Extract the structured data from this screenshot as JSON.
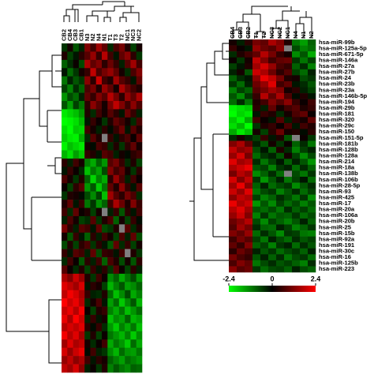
{
  "chart_data": [
    {
      "type": "heatmap",
      "x": [
        "CB2",
        "CB4",
        "CB3",
        "CB1",
        "N3",
        "N2",
        "N4",
        "N1",
        "T1",
        "T3",
        "T2",
        "NC1",
        "NC3",
        "NC2"
      ],
      "colors": [
        "#00ff00",
        "#000000",
        "#ff0000"
      ],
      "clim": [
        -2.4,
        2.4
      ],
      "missing_color": "#808080",
      "values": [
        [
          -0.5,
          0.2,
          -0.8,
          -0.3,
          1.2,
          0.6,
          1.5,
          0.9,
          -0.4,
          0.7,
          1.1,
          0.3,
          -0.6,
          0.2
        ],
        [
          0.3,
          -0.6,
          -0.2,
          0.4,
          0.8,
          1.4,
          0.5,
          1.7,
          0.6,
          -0.2,
          0.9,
          1.3,
          0.4,
          -0.5
        ],
        [
          -0.9,
          -0.4,
          0.1,
          -0.7,
          1.6,
          0.9,
          1.2,
          0.4,
          1.0,
          0.5,
          -0.3,
          0.8,
          1.5,
          0.6
        ],
        [
          -0.2,
          -1.0,
          -0.5,
          0.2,
          0.5,
          1.8,
          0.7,
          1.1,
          1.4,
          0.9,
          0.2,
          -0.4,
          0.7,
          1.2
        ],
        [
          -1.1,
          -0.3,
          -0.8,
          -0.5,
          1.3,
          0.4,
          1.9,
          0.6,
          0.3,
          1.5,
          0.8,
          0.5,
          -0.2,
          0.9
        ],
        [
          -0.6,
          -1.2,
          -0.4,
          -0.9,
          0.7,
          1.1,
          0.3,
          1.4,
          0.9,
          0.2,
          1.6,
          1.0,
          0.6,
          0.3
        ],
        [
          -1.4,
          -0.7,
          -1.0,
          -0.3,
          0.9,
          0.5,
          1.2,
          0.8,
          1.7,
          1.1,
          0.4,
          1.4,
          0.9,
          1.6
        ],
        [
          -0.8,
          -1.5,
          -0.6,
          -1.1,
          0.4,
          1.3,
          0.8,
          0.2,
          1.1,
          1.8,
          1.2,
          0.6,
          1.3,
          0.7
        ],
        [
          -2.2,
          -2.0,
          -1.8,
          -1.4,
          0.3,
          -0.4,
          0.6,
          0.2,
          0.8,
          0.4,
          -0.2,
          1.0,
          0.5,
          -0.3
        ],
        [
          -2.4,
          -2.3,
          -2.1,
          -1.7,
          -0.2,
          0.5,
          0.1,
          -0.5,
          0.3,
          0.9,
          0.6,
          0.2,
          -0.4,
          0.7
        ],
        [
          -2.1,
          -2.4,
          -1.9,
          -2.0,
          0.6,
          0.2,
          -0.3,
          0.4,
          -0.1,
          0.5,
          1.0,
          -0.2,
          0.8,
          0.3
        ],
        [
          -1.9,
          -2.2,
          -2.3,
          -1.6,
          -0.4,
          0.8,
          0.3,
          null,
          0.5,
          -0.2,
          0.4,
          0.7,
          0.1,
          0.9
        ],
        [
          -2.3,
          -1.8,
          -2.0,
          -2.2,
          0.2,
          -0.1,
          0.7,
          0.5,
          -0.4,
          0.3,
          -0.5,
          0.4,
          0.9,
          0.2
        ],
        [
          -1.7,
          -2.1,
          -1.5,
          -1.9,
          0.5,
          0.3,
          -0.2,
          0.8,
          0.6,
          -0.3,
          0.2,
          -0.1,
          0.4,
          0.6
        ],
        [
          0.4,
          -0.3,
          0.6,
          0.2,
          -1.2,
          -1.6,
          -0.9,
          -1.4,
          0.8,
          1.1,
          0.5,
          -0.4,
          0.3,
          -0.6
        ],
        [
          -0.2,
          0.5,
          0.1,
          -0.4,
          -1.8,
          -1.1,
          -1.5,
          -0.7,
          1.2,
          0.6,
          0.9,
          0.2,
          -0.5,
          0.4
        ],
        [
          0.7,
          0.2,
          -0.5,
          0.3,
          -0.9,
          -2.0,
          -1.2,
          -1.6,
          0.4,
          1.4,
          0.7,
          -0.3,
          0.6,
          0.1
        ],
        [
          0.1,
          -0.6,
          0.4,
          0.8,
          -1.4,
          -0.8,
          -1.9,
          -1.1,
          0.9,
          0.3,
          1.3,
          0.5,
          -0.2,
          0.8
        ],
        [
          -0.5,
          0.3,
          0.2,
          -0.1,
          -0.7,
          -1.3,
          -0.6,
          -1.8,
          1.5,
          0.8,
          0.4,
          1.1,
          0.7,
          -0.4
        ],
        [
          0.3,
          0.9,
          -0.2,
          0.5,
          -1.1,
          -0.5,
          -1.4,
          -0.9,
          0.6,
          1.6,
          1.0,
          0.3,
          1.2,
          0.5
        ],
        [
          0.6,
          -0.4,
          0.9,
          0.1,
          0.3,
          -0.6,
          0.2,
          null,
          -0.3,
          0.5,
          -0.8,
          0.4,
          -0.2,
          0.6
        ],
        [
          -0.3,
          0.7,
          0.2,
          -0.6,
          -0.4,
          0.8,
          -0.5,
          0.3,
          0.7,
          -0.9,
          0.2,
          -0.6,
          0.5,
          -0.1
        ],
        [
          1.1,
          0.4,
          -0.3,
          0.8,
          0.6,
          -0.2,
          0.9,
          -0.7,
          -0.5,
          0.3,
          null,
          0.8,
          -0.4,
          0.3
        ],
        [
          0.2,
          -0.8,
          0.5,
          -0.2,
          -0.9,
          0.4,
          -0.3,
          0.6,
          0.2,
          -0.6,
          0.7,
          -0.3,
          0.9,
          -0.7
        ],
        [
          -0.7,
          0.3,
          -0.6,
          0.4,
          0.7,
          -0.5,
          0.4,
          -0.2,
          -0.8,
          0.9,
          -0.4,
          0.5,
          -0.6,
          0.2
        ],
        [
          0.5,
          -0.2,
          0.8,
          0.6,
          -0.3,
          0.9,
          -0.7,
          0.5,
          0.4,
          -0.2,
          0.6,
          null,
          0.3,
          -0.5
        ],
        [
          -0.4,
          0.6,
          0.1,
          -0.8,
          0.4,
          -0.3,
          0.6,
          -0.9,
          0.7,
          0.3,
          -0.7,
          0.2,
          -0.8,
          0.4
        ],
        [
          0.8,
          0.1,
          -0.4,
          0.3,
          -0.6,
          0.5,
          -0.2,
          0.4,
          -0.5,
          0.8,
          0.1,
          -0.6,
          0.4,
          -0.3
        ],
        [
          1.6,
          1.2,
          1.9,
          1.4,
          0.3,
          -0.5,
          0.6,
          0.1,
          -1.3,
          -0.9,
          -1.6,
          -1.1,
          -0.7,
          -1.4
        ],
        [
          2.1,
          1.8,
          1.5,
          2.0,
          -0.2,
          0.4,
          0.2,
          -0.6,
          -1.7,
          -1.2,
          -0.8,
          -1.5,
          -1.3,
          -0.9
        ],
        [
          1.8,
          2.3,
          2.0,
          1.6,
          0.5,
          -0.3,
          -0.4,
          0.3,
          -1.0,
          -1.8,
          -1.3,
          -0.7,
          -1.6,
          -1.2
        ],
        [
          2.4,
          1.9,
          2.2,
          1.7,
          -0.4,
          0.2,
          0.7,
          -0.2,
          -1.5,
          -1.0,
          -1.9,
          -1.3,
          -0.8,
          -1.7
        ],
        [
          1.9,
          2.2,
          1.7,
          2.3,
          0.1,
          -0.6,
          0.3,
          0.5,
          -1.2,
          -1.6,
          -1.1,
          -1.8,
          -1.4,
          -1.0
        ],
        [
          2.2,
          1.6,
          2.4,
          1.9,
          -0.3,
          0.5,
          -0.2,
          0.2,
          -1.8,
          -1.3,
          -1.5,
          -0.9,
          -1.7,
          -1.5
        ],
        [
          1.7,
          2.0,
          1.8,
          2.1,
          0.4,
          -0.1,
          0.5,
          -0.4,
          -1.4,
          -1.9,
          -1.2,
          -1.6,
          -1.1,
          -1.8
        ],
        [
          2.3,
          1.7,
          2.1,
          1.5,
          -0.5,
          0.3,
          -0.6,
          0.1,
          -1.1,
          -1.4,
          -1.7,
          -1.2,
          -1.9,
          -1.3
        ],
        [
          1.5,
          2.1,
          1.6,
          1.8,
          0.2,
          -0.4,
          0.1,
          0.6,
          -1.6,
          -1.1,
          -1.4,
          -1.9,
          -1.0,
          -1.6
        ],
        [
          2.0,
          1.4,
          1.9,
          2.2,
          -0.1,
          0.6,
          -0.3,
          -0.5,
          -1.3,
          -1.7,
          -1.0,
          -1.4,
          -1.5,
          -1.1
        ],
        [
          1.4,
          1.8,
          1.3,
          1.6,
          0.6,
          -0.2,
          0.4,
          0.2,
          -0.9,
          -1.2,
          -1.5,
          -1.0,
          -1.2,
          -1.4
        ],
        [
          1.8,
          1.5,
          2.0,
          1.3,
          -0.3,
          0.1,
          -0.5,
          0.3,
          -1.2,
          -0.8,
          -1.1,
          -1.3,
          -0.9,
          -1.0
        ]
      ]
    },
    {
      "type": "heatmap",
      "x": [
        "CB4",
        "CB3",
        "CB2",
        "T1",
        "T2",
        "NC3",
        "NC2",
        "NC1",
        "N4",
        "N1",
        "N2"
      ],
      "y": [
        "hsa-miR-99b",
        "hsa-miR-125a-5p",
        "hsa-miR-671-5p",
        "hsa-miR-146a",
        "hsa-miR-27a",
        "hsa-miR-27b",
        "hsa-miR-24",
        "hsa-miR-23b",
        "hsa-miR-23a",
        "hsa-miR-146b-5p",
        "hsa-miR-194",
        "hsa-miR-29b",
        "hsa-miR-181",
        "hsa-miR-320",
        "hsa-miR-29c",
        "hsa-miR-150",
        "hsa-miR-151-5p",
        "hsa-miR-181b",
        "hsa-miR-128b",
        "hsa-miR-128a",
        "hsa-miR-214",
        "hsa-miR-18a",
        "hsa-miR-138b",
        "hsa-miR-106b",
        "hsa-miR-28-5p",
        "hsa-miR-93",
        "hsa-miR-425",
        "hsa-miR-17",
        "hsa-miR-20a",
        "hsa-miR-106a",
        "hsa-miR-20b",
        "hsa-miR-25",
        "hsa-miR-15b",
        "hsa-miR-92a",
        "hsa-miR-191",
        "hsa-miR-30c",
        "hsa-miR-16",
        "hsa-miR-125b",
        "hsa-miR-223"
      ],
      "colors": [
        "#00ff00",
        "#000000",
        "#ff0000"
      ],
      "clim": [
        -2.4,
        2.4
      ],
      "cticks": [
        -2.4,
        0,
        2.4
      ],
      "missing_color": "#808080",
      "values": [
        [
          0.2,
          -0.3,
          0.4,
          1.1,
          0.9,
          1.6,
          1.2,
          0.3,
          -1.1,
          -1.5,
          -0.9
        ],
        [
          0.5,
          0.1,
          -0.2,
          1.4,
          1.0,
          0.8,
          1.3,
          null,
          -0.7,
          -1.2,
          -1.0
        ],
        [
          -0.4,
          0.3,
          0.6,
          0.9,
          1.7,
          1.1,
          0.5,
          0.2,
          -1.3,
          -0.8,
          -1.6
        ],
        [
          0.1,
          -0.5,
          0.2,
          1.8,
          1.2,
          0.6,
          0.9,
          1.0,
          -0.5,
          -1.1,
          -0.6
        ],
        [
          -0.6,
          -0.2,
          0.3,
          1.5,
          2.0,
          1.4,
          0.7,
          0.5,
          -0.9,
          -0.4,
          -1.2
        ],
        [
          -0.3,
          0.2,
          -0.8,
          1.9,
          1.6,
          1.0,
          0.4,
          0.8,
          -0.6,
          -1.0,
          -0.3
        ],
        [
          -0.9,
          -0.4,
          -0.2,
          1.3,
          2.2,
          1.8,
          1.1,
          0.3,
          0.2,
          -0.7,
          -0.5
        ],
        [
          -0.5,
          -1.0,
          -0.3,
          1.0,
          1.4,
          2.1,
          0.6,
          0.9,
          -0.2,
          -0.4,
          -0.8
        ],
        [
          -1.2,
          -0.6,
          -0.9,
          0.8,
          1.1,
          1.5,
          1.2,
          0.2,
          0.4,
          -0.3,
          -0.6
        ],
        [
          -0.8,
          -1.3,
          -0.5,
          0.5,
          1.7,
          0.9,
          1.6,
          0.7,
          -0.1,
          0.3,
          -0.2
        ],
        [
          -1.0,
          -0.4,
          -1.1,
          0.3,
          0.6,
          1.2,
          0.8,
          1.3,
          0.5,
          0.1,
          0.6
        ],
        [
          -2.3,
          -2.1,
          -1.9,
          0.4,
          -0.3,
          0.9,
          0.2,
          0.6,
          0.8,
          0.3,
          0.5
        ],
        [
          -2.4,
          -2.0,
          -2.2,
          -0.2,
          0.5,
          0.3,
          -0.4,
          0.2,
          0.7,
          0.9,
          0.1
        ],
        [
          -1.9,
          -2.3,
          -1.6,
          0.6,
          0.1,
          -0.2,
          0.8,
          -0.3,
          0.4,
          0.2,
          0.9
        ],
        [
          -2.1,
          -1.7,
          -2.4,
          -0.5,
          0.3,
          0.5,
          0.1,
          0.7,
          -0.2,
          0.6,
          0.3
        ],
        [
          -1.6,
          -2.2,
          -1.8,
          0.2,
          -0.6,
          0.4,
          1.0,
          0.2,
          0.3,
          -0.1,
          0.4
        ],
        [
          -0.4,
          0.2,
          -0.3,
          -0.6,
          0.5,
          -0.2,
          0.3,
          -0.8,
          null,
          0.1,
          -0.5
        ],
        [
          1.2,
          1.6,
          0.9,
          -0.3,
          -0.8,
          0.2,
          -0.5,
          0.1,
          -0.9,
          -0.4,
          -1.1
        ],
        [
          1.8,
          1.3,
          1.5,
          -0.7,
          -0.2,
          -0.9,
          0.3,
          -0.4,
          -1.2,
          -0.6,
          -0.3
        ],
        [
          1.4,
          2.0,
          1.1,
          -1.0,
          -0.5,
          -0.3,
          -0.8,
          0.2,
          -0.6,
          -1.3,
          -0.7
        ],
        [
          2.1,
          1.5,
          1.7,
          -0.4,
          -1.1,
          -0.6,
          -0.2,
          -0.9,
          -0.3,
          -0.8,
          -1.4
        ],
        [
          1.6,
          1.9,
          2.2,
          -0.8,
          -0.6,
          -1.2,
          -0.5,
          -0.3,
          -1.0,
          -0.4,
          -0.9
        ],
        [
          1.1,
          1.7,
          1.4,
          -1.3,
          -0.9,
          -0.4,
          -1.0,
          null,
          -0.7,
          -1.1,
          -0.5
        ],
        [
          2.0,
          1.2,
          1.8,
          -0.5,
          -1.4,
          -0.8,
          -0.3,
          -1.1,
          -0.6,
          -0.2,
          -1.0
        ],
        [
          1.5,
          2.2,
          1.3,
          -0.9,
          -0.3,
          -1.0,
          -0.7,
          -0.5,
          -1.3,
          -0.8,
          -0.4
        ],
        [
          1.9,
          1.4,
          2.1,
          -1.1,
          -0.7,
          -0.5,
          -1.2,
          -0.8,
          -0.4,
          -1.0,
          -0.6
        ],
        [
          1.3,
          1.8,
          1.6,
          -0.6,
          -1.2,
          -0.9,
          -0.4,
          -0.7,
          -1.1,
          -0.5,
          -1.3
        ],
        [
          2.2,
          1.6,
          1.9,
          -1.4,
          -0.8,
          -1.3,
          -0.6,
          -1.0,
          -0.7,
          -1.2,
          -0.8
        ],
        [
          1.7,
          2.1,
          1.5,
          -0.8,
          -1.0,
          -0.7,
          -1.1,
          -0.4,
          -0.9,
          -0.6,
          -1.0
        ],
        [
          1.4,
          1.9,
          1.2,
          -1.2,
          -0.5,
          -1.1,
          -0.8,
          -0.9,
          -0.5,
          -1.0,
          -0.7
        ],
        [
          1.0,
          1.3,
          1.7,
          -0.7,
          -1.3,
          -0.6,
          -0.9,
          -1.2,
          -0.8,
          -0.3,
          -0.9
        ],
        [
          0.8,
          1.5,
          1.1,
          -0.4,
          -0.9,
          -1.0,
          -0.3,
          -0.6,
          -1.2,
          -0.9,
          -0.5
        ],
        [
          1.2,
          0.9,
          1.4,
          -1.0,
          -0.4,
          -0.8,
          -1.3,
          -0.5,
          -0.6,
          -1.1,
          -1.2
        ],
        [
          0.6,
          1.1,
          0.8,
          -0.6,
          -1.1,
          -0.3,
          -0.7,
          -1.0,
          -0.4,
          -0.8,
          -0.6
        ],
        [
          0.9,
          0.5,
          1.2,
          -0.9,
          -0.6,
          -1.2,
          -0.5,
          -0.3,
          -1.0,
          -0.4,
          -0.8
        ],
        [
          0.4,
          1.0,
          0.7,
          -0.3,
          -0.8,
          -0.5,
          -1.0,
          -0.7,
          -0.5,
          -0.9,
          -0.3
        ],
        [
          1.1,
          0.7,
          0.5,
          -0.8,
          -0.3,
          -0.9,
          -0.4,
          -1.1,
          -0.7,
          -0.5,
          -1.0
        ],
        [
          0.7,
          1.2,
          0.9,
          -1.1,
          -0.7,
          -0.4,
          -0.8,
          -0.6,
          -0.9,
          -1.2,
          -0.4
        ],
        [
          1.3,
          0.8,
          1.0,
          -0.5,
          -1.0,
          -0.7,
          -0.6,
          -0.9,
          -0.3,
          -0.7,
          -0.9
        ]
      ]
    }
  ]
}
